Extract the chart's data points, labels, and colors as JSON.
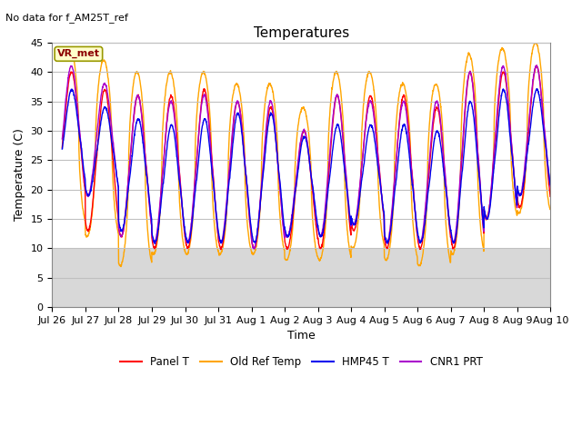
{
  "title": "Temperatures",
  "xlabel": "Time",
  "ylabel": "Temperature (C)",
  "annotation_text": "No data for f_AM25T_ref",
  "box_label": "VR_met",
  "ylim": [
    0,
    45
  ],
  "yticks": [
    0,
    5,
    10,
    15,
    20,
    25,
    30,
    35,
    40,
    45
  ],
  "date_labels": [
    "Jul 26",
    "Jul 27",
    "Jul 28",
    "Jul 29",
    "Jul 30",
    "Jul 31",
    "Aug 1",
    "Aug 2",
    "Aug 3",
    "Aug 4",
    "Aug 5",
    "Aug 6",
    "Aug 7",
    "Aug 8",
    "Aug 9",
    "Aug 10"
  ],
  "colors": {
    "panel_t": "#FF0000",
    "old_ref_temp": "#FFA500",
    "hmp45_t": "#0000EE",
    "cnr1_prt": "#AA00CC"
  },
  "legend_labels": [
    "Panel T",
    "Old Ref Temp",
    "HMP45 T",
    "CNR1 PRT"
  ],
  "title_fontsize": 11,
  "label_fontsize": 9,
  "tick_fontsize": 8
}
